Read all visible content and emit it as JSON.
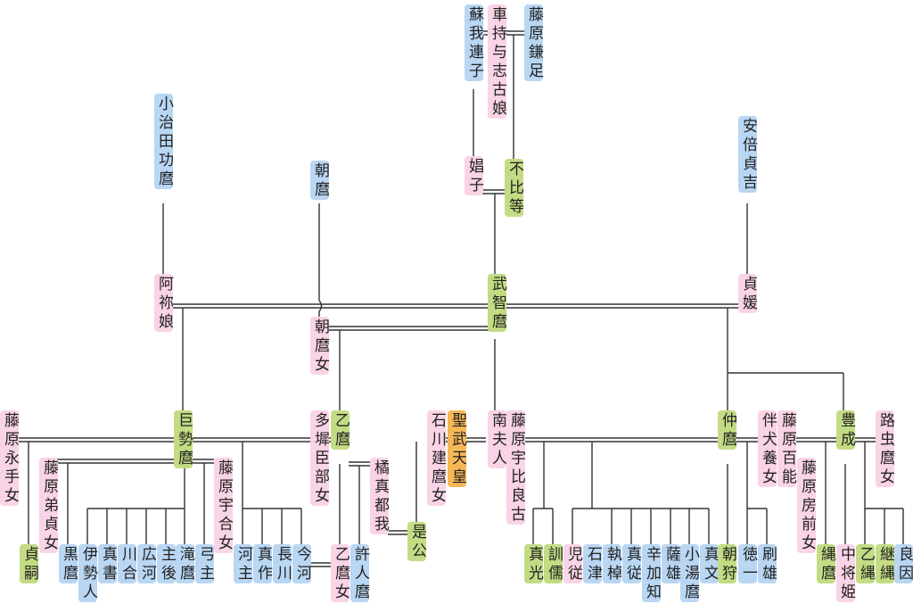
{
  "nodes": [
    {
      "label": "藤原鎌足"
    },
    {
      "label": "車持与志古娘"
    },
    {
      "label": "蘇我連子"
    },
    {
      "label": "小治田功麿"
    },
    {
      "label": "朝麿"
    },
    {
      "label": "安倍貞吉"
    },
    {
      "label": "娼子"
    },
    {
      "label": "不比等"
    },
    {
      "label": "阿祢娘"
    },
    {
      "label": "武智麿"
    },
    {
      "label": "貞媛"
    },
    {
      "label": "朝麿女"
    },
    {
      "label": "藤原永手女"
    },
    {
      "label": "巨勢麿"
    },
    {
      "label": "多墀臣部女"
    },
    {
      "label": "乙麿"
    },
    {
      "label": "石川建麿女"
    },
    {
      "label": "聖武天皇"
    },
    {
      "label": "南夫人"
    },
    {
      "label": "藤原宇比良古"
    },
    {
      "label": "仲麿"
    },
    {
      "label": "伴犬養女"
    },
    {
      "label": "藤原百能"
    },
    {
      "label": "豊成"
    },
    {
      "label": "路虫麿女"
    },
    {
      "label": "藤原弟貞女"
    },
    {
      "label": "藤原宇合女"
    },
    {
      "label": "橘真都我"
    },
    {
      "label": "藤原房前女"
    },
    {
      "label": "是公"
    },
    {
      "label": "貞嗣"
    },
    {
      "label": "黒麿"
    },
    {
      "label": "伊勢人"
    },
    {
      "label": "真書"
    },
    {
      "label": "川合"
    },
    {
      "label": "広河"
    },
    {
      "label": "主後"
    },
    {
      "label": "滝麿"
    },
    {
      "label": "弓主"
    },
    {
      "label": "河主"
    },
    {
      "label": "真作"
    },
    {
      "label": "長川"
    },
    {
      "label": "今河"
    },
    {
      "label": "乙麿女"
    },
    {
      "label": "許人麿"
    },
    {
      "label": "真光"
    },
    {
      "label": "訓儒"
    },
    {
      "label": "児従"
    },
    {
      "label": "石津"
    },
    {
      "label": "執棹"
    },
    {
      "label": "真従"
    },
    {
      "label": "辛加知"
    },
    {
      "label": "薩雄"
    },
    {
      "label": "小湯麿"
    },
    {
      "label": "真文"
    },
    {
      "label": "朝狩"
    },
    {
      "label": "徳一"
    },
    {
      "label": "刷雄"
    },
    {
      "label": "縄麿"
    },
    {
      "label": "中将姫"
    },
    {
      "label": "乙縄"
    },
    {
      "label": "継縄"
    },
    {
      "label": "良因"
    }
  ]
}
